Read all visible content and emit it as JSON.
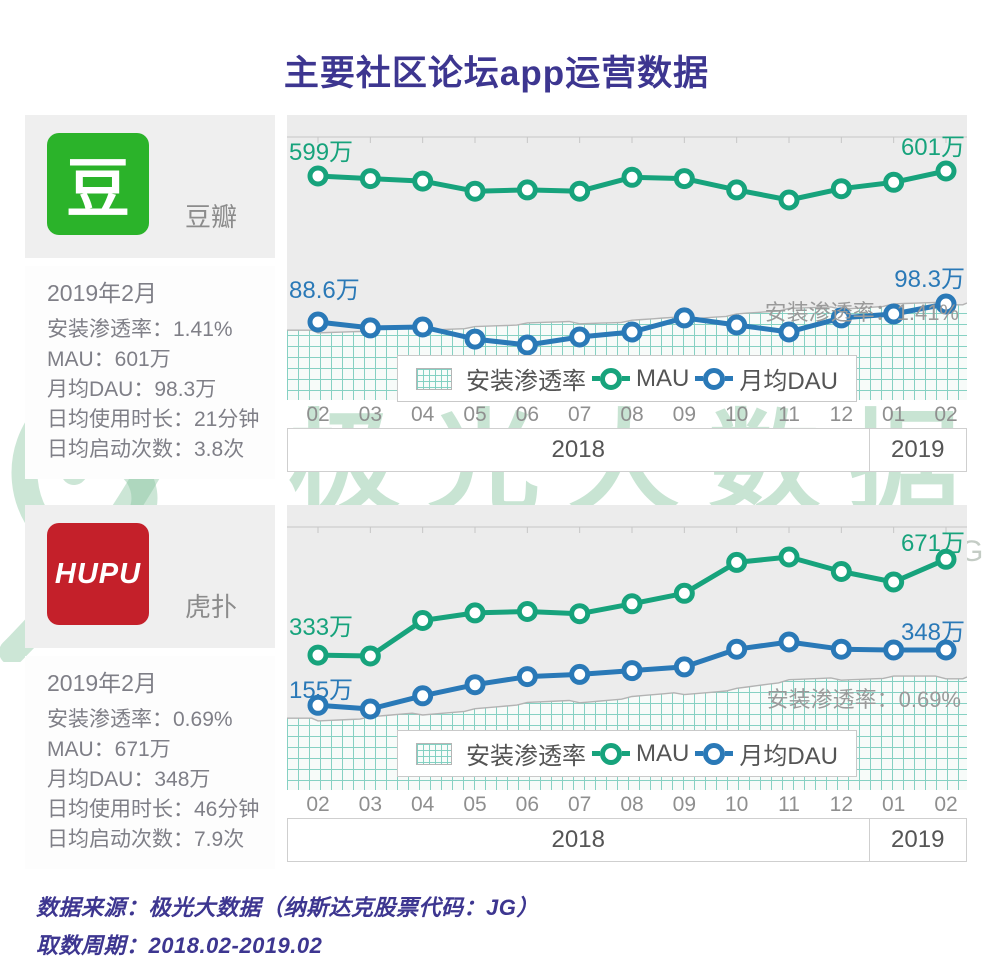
{
  "title": "主要社区论坛app运营数据",
  "watermark": {
    "brand": "极光大数据",
    "ticker": "纳斯达克股票代码：JG"
  },
  "footer": {
    "source": "数据来源：极光大数据（纳斯达克股票代码：JG）",
    "period": "取数周期：2018.02-2019.02"
  },
  "colors": {
    "accent_indigo": "#3d3690",
    "mau_green": "#17a37c",
    "dau_blue": "#2a79b7",
    "douban_green": "#2bb32a",
    "hupu_red": "#c4202a",
    "chart_bg": "#ececec",
    "panel_bg": "#efefef",
    "stats_text_gray": "#7f7f87",
    "axis_gray": "#8f8f8f",
    "year_gray": "#555555",
    "annotation_gray": "#9a9a9a",
    "area_grid_teal": "#7ecfc0",
    "area_edge_gray": "#b3b3b3",
    "ruler_gray": "#c6c6c6",
    "watermark_green": "rgba(134,195,158,0.45)",
    "watermark_gray": "rgba(148,163,150,0.55)"
  },
  "apps": [
    {
      "name": "豆瓣",
      "logo_text": "豆",
      "logo_color_key": "douban_green",
      "period": "2019年2月",
      "stats": [
        {
          "label": "安装渗透率",
          "value": "1.41%"
        },
        {
          "label": "MAU",
          "value": "601万"
        },
        {
          "label": "月均DAU",
          "value": "98.3万"
        },
        {
          "label": "日均使用时长",
          "value": "21分钟"
        },
        {
          "label": "日均启动次数",
          "value": "3.8次"
        }
      ]
    },
    {
      "name": "虎扑",
      "logo_text": "HUPU",
      "logo_color_key": "hupu_red",
      "period": "2019年2月",
      "stats": [
        {
          "label": "安装渗透率",
          "value": "0.69%"
        },
        {
          "label": "MAU",
          "value": "671万"
        },
        {
          "label": "月均DAU",
          "value": "348万"
        },
        {
          "label": "日均使用时长",
          "value": "46分钟"
        },
        {
          "label": "日均启动次数",
          "value": "7.9次"
        }
      ]
    }
  ],
  "chart_data": [
    {
      "type": "line",
      "app": "豆瓣",
      "x": [
        "02",
        "03",
        "04",
        "05",
        "06",
        "07",
        "08",
        "09",
        "10",
        "11",
        "12",
        "01",
        "02"
      ],
      "year_groups": [
        {
          "label": "2018",
          "from": 0,
          "to": 10
        },
        {
          "label": "2019",
          "from": 11,
          "to": 12
        }
      ],
      "legend": [
        "安装渗透率",
        "MAU",
        "月均DAU"
      ],
      "scale_note": "each series independently scaled to its own band; values in 万 (lines) and % (area), estimated from pixels between labeled endpoints",
      "series": [
        {
          "name": "MAU",
          "type": "line",
          "unit": "万",
          "color_key": "mau_green",
          "values": [
            599,
            598,
            597,
            593,
            593.5,
            593,
            598.5,
            598,
            593.5,
            589.5,
            594,
            596.5,
            601
          ],
          "start_label": "599万",
          "end_label": "601万"
        },
        {
          "name": "月均DAU",
          "type": "line",
          "unit": "万",
          "color_key": "dau_blue",
          "values": [
            88.6,
            85.4,
            85.9,
            79.4,
            76.2,
            80.5,
            83.2,
            90.8,
            87.0,
            83.2,
            90.8,
            92.9,
            98.3
          ],
          "start_label": "88.6万",
          "end_label": "98.3万"
        },
        {
          "name": "安装渗透率",
          "type": "area",
          "unit": "%",
          "values": [
            1.25,
            1.26,
            1.27,
            1.28,
            1.29,
            1.3,
            1.31,
            1.33,
            1.35,
            1.37,
            1.38,
            1.4,
            1.41
          ],
          "annotation": "安装渗透率：1.41%"
        }
      ]
    },
    {
      "type": "line",
      "app": "虎扑",
      "x": [
        "02",
        "03",
        "04",
        "05",
        "06",
        "07",
        "08",
        "09",
        "10",
        "11",
        "12",
        "01",
        "02"
      ],
      "year_groups": [
        {
          "label": "2018",
          "from": 0,
          "to": 10
        },
        {
          "label": "2019",
          "from": 11,
          "to": 12
        }
      ],
      "legend": [
        "安装渗透率",
        "MAU",
        "月均DAU"
      ],
      "scale_note": "each series independently scaled to its own band; values in 万 (lines) and % (area), estimated from pixels between labeled endpoints",
      "series": [
        {
          "name": "MAU",
          "type": "line",
          "unit": "万",
          "color_key": "mau_green",
          "values": [
            333,
            330,
            455,
            482,
            487,
            479,
            514,
            551,
            660,
            679,
            628,
            591,
            671
          ],
          "start_label": "333万",
          "end_label": "671万"
        },
        {
          "name": "月均DAU",
          "type": "line",
          "unit": "万",
          "color_key": "dau_blue",
          "values": [
            155,
            142,
            188,
            227,
            255,
            263,
            276,
            289,
            351,
            376,
            351,
            348,
            348
          ],
          "start_label": "155万",
          "end_label": "348万"
        },
        {
          "name": "安装渗透率",
          "type": "area",
          "unit": "%",
          "values": [
            0.5,
            0.51,
            0.53,
            0.55,
            0.57,
            0.58,
            0.6,
            0.62,
            0.64,
            0.67,
            0.68,
            0.69,
            0.69
          ],
          "annotation": "安装渗透率：0.69%"
        }
      ]
    }
  ]
}
